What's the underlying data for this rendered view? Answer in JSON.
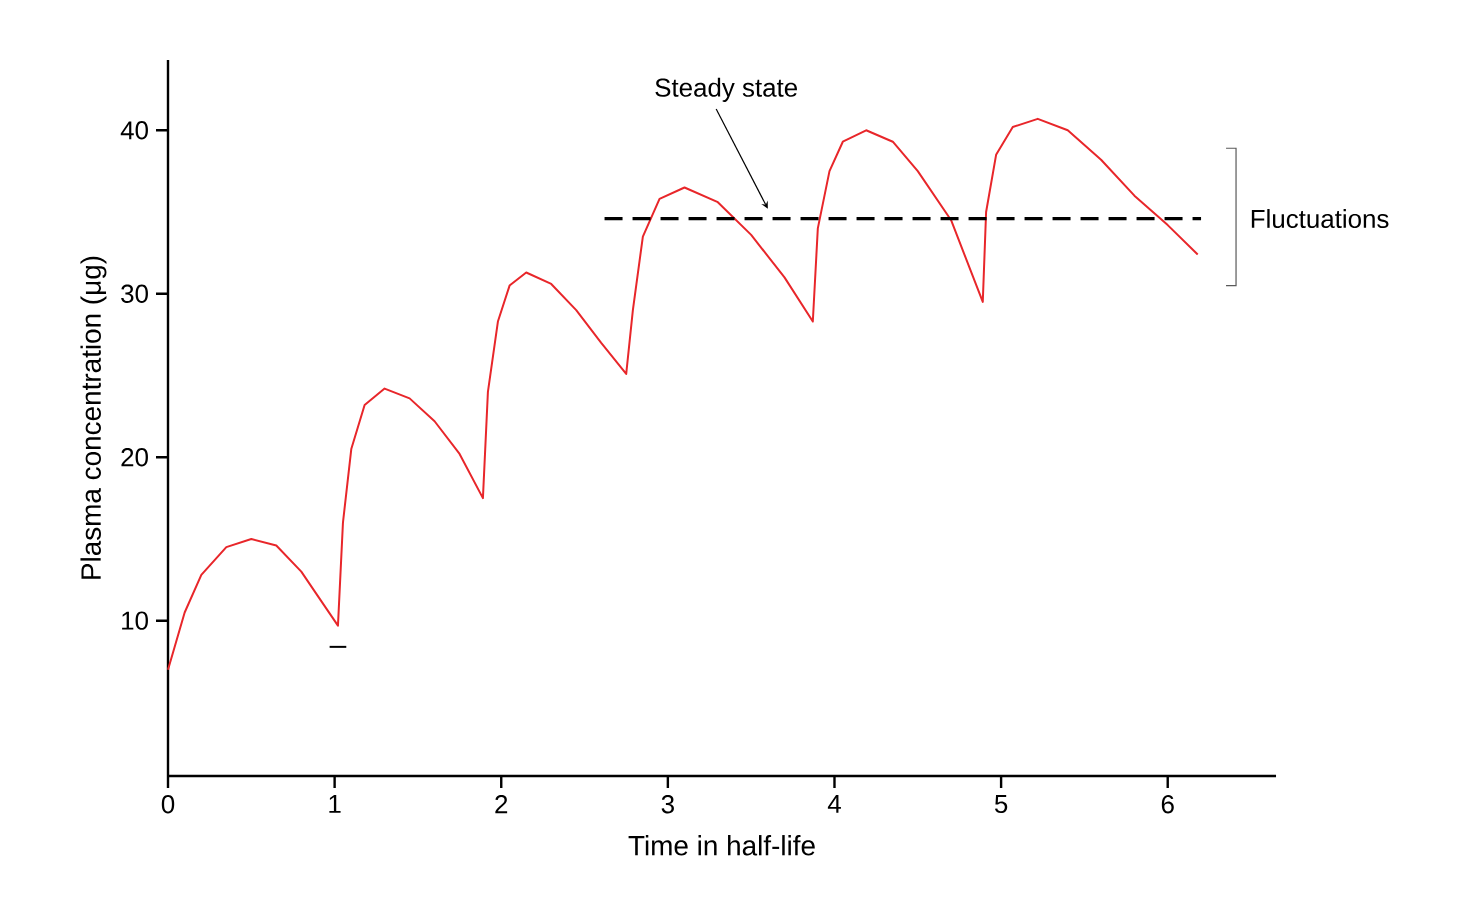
{
  "chart_data": {
    "type": "line",
    "xlabel": "Time in half-life",
    "ylabel": "Plasma concentration (μg)",
    "xlim": [
      0,
      6.65
    ],
    "ylim": [
      0.5,
      44.3
    ],
    "xticks": [
      0,
      1,
      2,
      3,
      4,
      5,
      6
    ],
    "yticks": [
      10,
      20,
      30,
      40
    ],
    "series": [
      {
        "color": "#e8262a",
        "line_style": "solid",
        "x": [
          0,
          0.1,
          0.2,
          0.35,
          0.5,
          0.65,
          0.8,
          0.92,
          1.02,
          1.05,
          1.1,
          1.18,
          1.3,
          1.45,
          1.6,
          1.75,
          1.89,
          1.92,
          1.98,
          2.05,
          2.15,
          2.3,
          2.45,
          2.6,
          2.75,
          2.79,
          2.85,
          2.95,
          3.1,
          3.3,
          3.5,
          3.7,
          3.87,
          3.9,
          3.97,
          4.05,
          4.19,
          4.35,
          4.5,
          4.7,
          4.89,
          4.91,
          4.97,
          5.07,
          5.22,
          5.4,
          5.6,
          5.8,
          6.0,
          6.18
        ],
        "values": [
          7.0,
          10.5,
          12.8,
          14.5,
          15.0,
          14.6,
          13.0,
          11.2,
          9.7,
          16,
          20.5,
          23.2,
          24.2,
          23.6,
          22.2,
          20.2,
          17.5,
          24,
          28.3,
          30.5,
          31.3,
          30.6,
          29.0,
          27.0,
          25.1,
          29,
          33.5,
          35.8,
          36.5,
          35.6,
          33.6,
          31.0,
          28.3,
          34,
          37.5,
          39.3,
          40.0,
          39.3,
          37.5,
          34.5,
          29.5,
          35,
          38.5,
          40.2,
          40.7,
          40.0,
          38.2,
          36.0,
          34.2,
          32.4
        ]
      },
      {
        "color": "#000000",
        "line_style": "dashed",
        "x": [
          2.62,
          6.2
        ],
        "values": [
          34.6,
          34.6
        ]
      },
      {
        "color": "#000000",
        "line_style": "solid",
        "x": [
          0.97,
          1.07
        ],
        "values": [
          8.4,
          8.4
        ]
      }
    ],
    "annotations": [
      "Steady state",
      "Fluctuations"
    ]
  }
}
